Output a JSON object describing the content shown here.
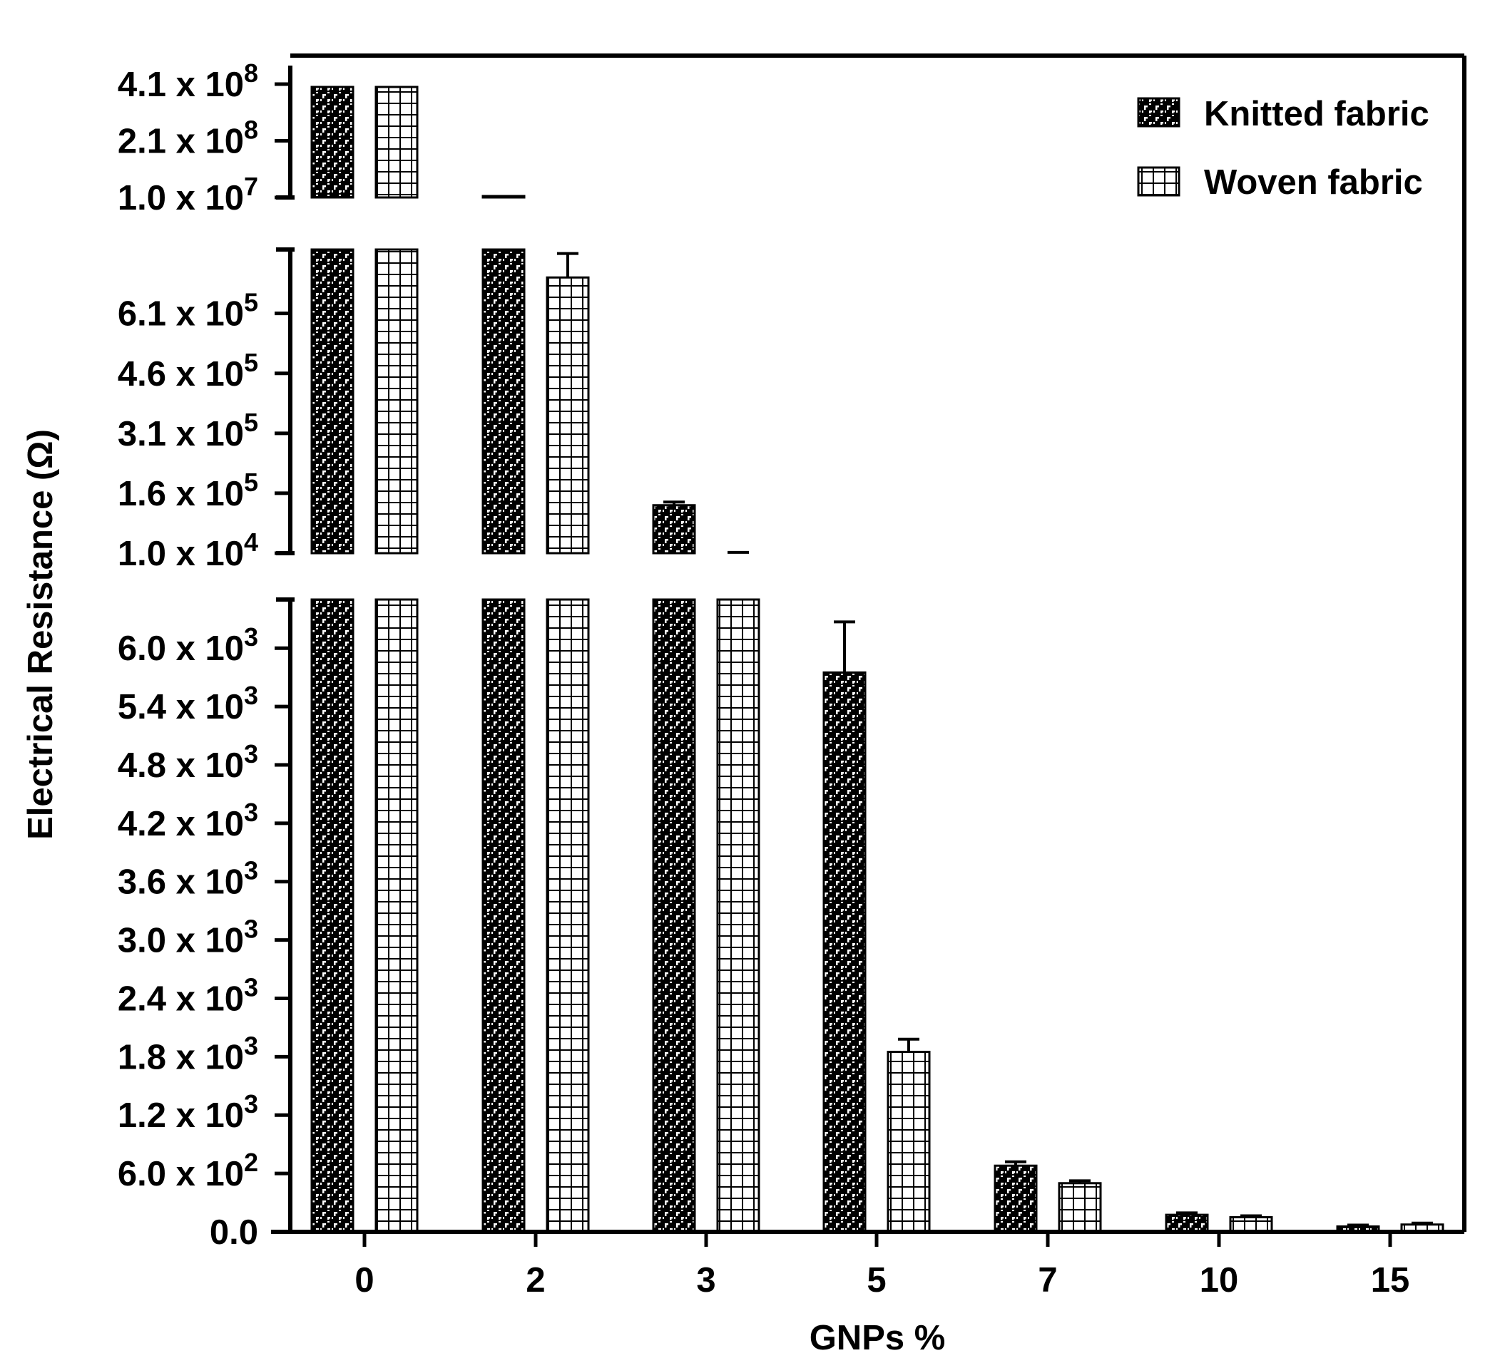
{
  "chart_data": {
    "type": "bar",
    "xlabel": "GNPs %",
    "ylabel": "Electrical Resistance (Ω)",
    "categories": [
      "0",
      "2",
      "3",
      "5",
      "7",
      "10",
      "15"
    ],
    "series": [
      {
        "name": "Knitted fabric",
        "pattern": "knitted",
        "values": [
          400000000,
          15000000,
          130000,
          5750,
          680,
          175,
          55
        ],
        "errors": [
          null,
          null,
          8000,
          520,
          40,
          20,
          15
        ]
      },
      {
        "name": "Woven fabric",
        "pattern": "woven",
        "values": [
          400000000,
          700000,
          11000,
          1850,
          500,
          150,
          75
        ],
        "errors": [
          null,
          60000,
          1000,
          130,
          25,
          15,
          15
        ]
      }
    ],
    "y_axis_segments": [
      {
        "name": "bottom",
        "range": [
          0,
          6500
        ],
        "ticks": [
          {
            "value": 0,
            "base": "0.0",
            "exp": ""
          },
          {
            "value": 600,
            "base": "6.0 x 10",
            "exp": "2"
          },
          {
            "value": 1200,
            "base": "1.2 x 10",
            "exp": "3"
          },
          {
            "value": 1800,
            "base": "1.8 x 10",
            "exp": "3"
          },
          {
            "value": 2400,
            "base": "2.4 x 10",
            "exp": "3"
          },
          {
            "value": 3000,
            "base": "3.0 x 10",
            "exp": "3"
          },
          {
            "value": 3600,
            "base": "3.6 x 10",
            "exp": "3"
          },
          {
            "value": 4200,
            "base": "4.2 x 10",
            "exp": "3"
          },
          {
            "value": 4800,
            "base": "4.8 x 10",
            "exp": "3"
          },
          {
            "value": 5400,
            "base": "5.4 x 10",
            "exp": "3"
          },
          {
            "value": 6000,
            "base": "6.0 x 10",
            "exp": "3"
          }
        ]
      },
      {
        "name": "middle",
        "range": [
          10000,
          770000
        ],
        "ticks": [
          {
            "value": 10000,
            "base": "1.0 x 10",
            "exp": "4"
          },
          {
            "value": 160000,
            "base": "1.6 x 10",
            "exp": "5"
          },
          {
            "value": 310000,
            "base": "3.1 x 10",
            "exp": "5"
          },
          {
            "value": 460000,
            "base": "4.6 x 10",
            "exp": "5"
          },
          {
            "value": 610000,
            "base": "6.1 x 10",
            "exp": "5"
          }
        ]
      },
      {
        "name": "top",
        "range": [
          10000000,
          410000000
        ],
        "ticks": [
          {
            "value": 10000000,
            "base": "1.0 x 10",
            "exp": "7"
          },
          {
            "value": 210000000,
            "base": "2.1 x 10",
            "exp": "8"
          },
          {
            "value": 410000000,
            "base": "4.1 x 10",
            "exp": "8"
          }
        ]
      }
    ],
    "legend_position": "top-right",
    "grid": false
  }
}
